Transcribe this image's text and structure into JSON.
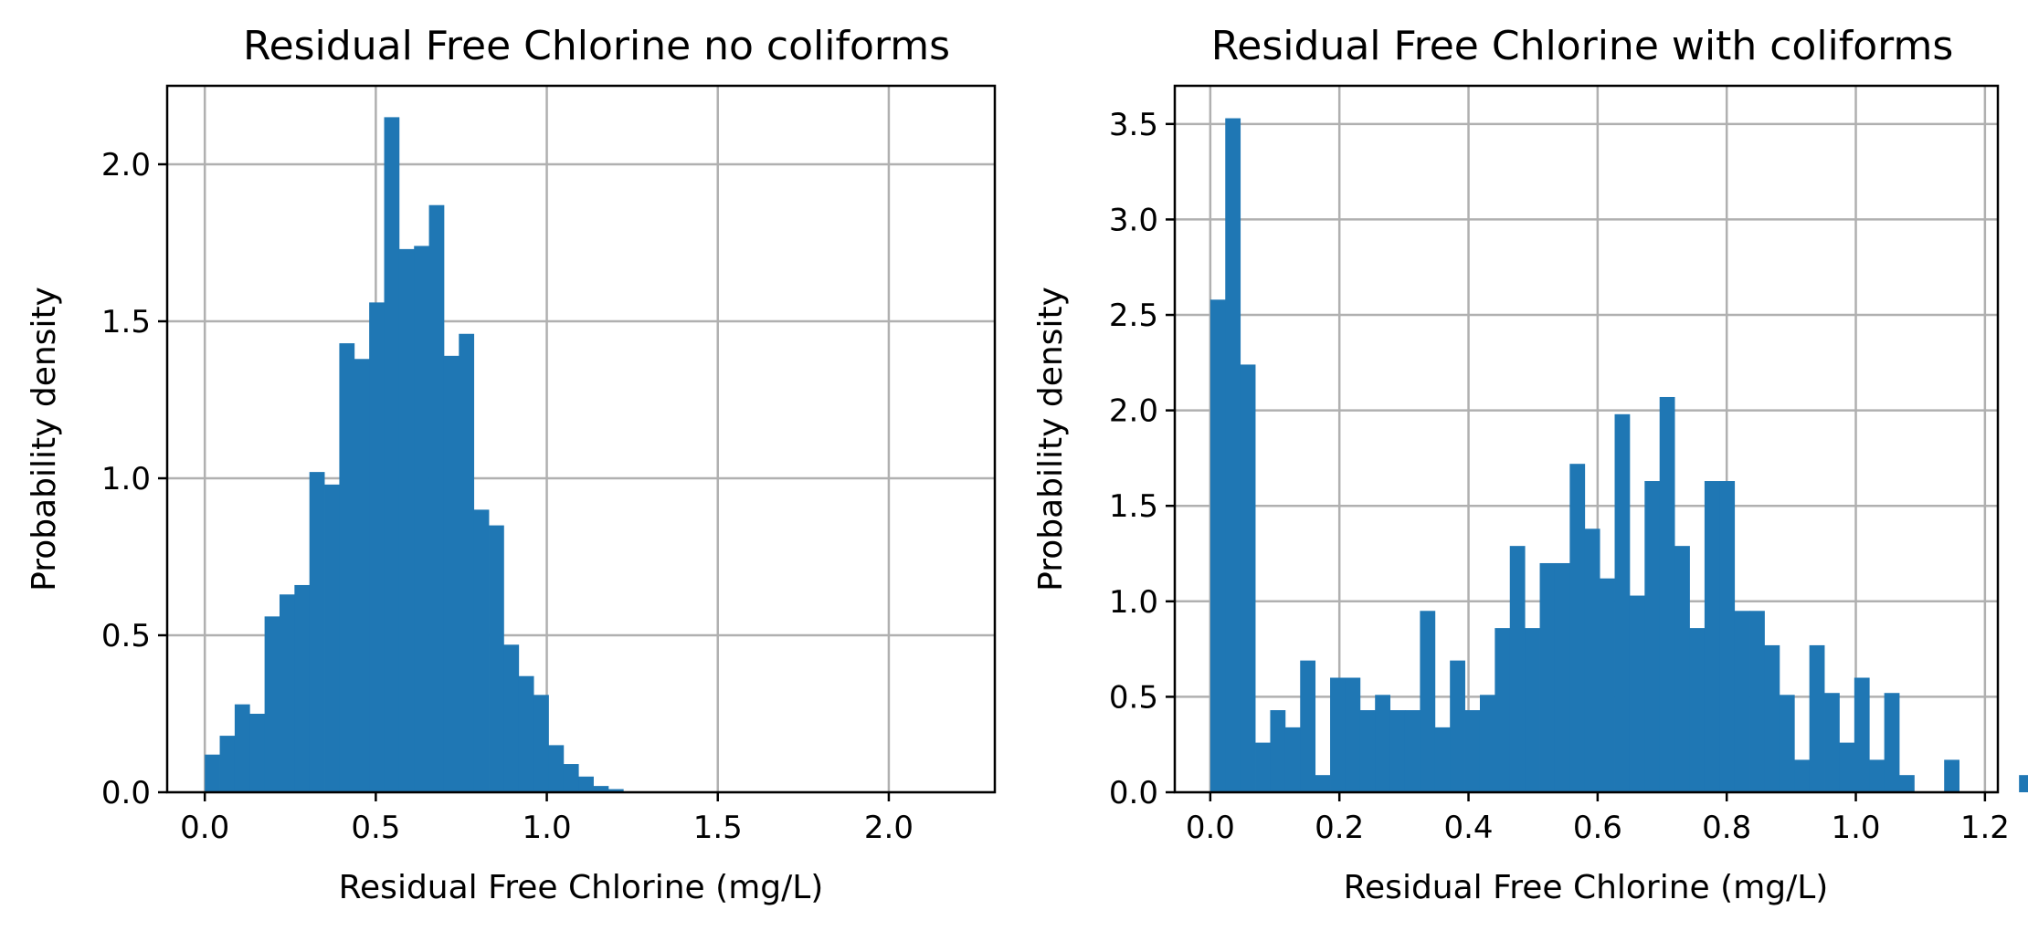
{
  "chart_data": [
    {
      "type": "bar",
      "title": "Residual Free Chlorine no coliforms",
      "xlabel": "Residual Free Chlorine (mg/L)",
      "ylabel": "Probability density",
      "xlim": [
        -0.11,
        2.31
      ],
      "ylim": [
        0,
        2.25
      ],
      "xticks": [
        0.0,
        0.5,
        1.0,
        1.5,
        2.0
      ],
      "xtick_labels": [
        "0.0",
        "0.5",
        "1.0",
        "1.5",
        "2.0"
      ],
      "yticks": [
        0.0,
        0.5,
        1.0,
        1.5,
        2.0
      ],
      "ytick_labels": [
        "0.0",
        "0.5",
        "1.0",
        "1.5",
        "2.0"
      ],
      "grid": true,
      "color": "#1f77b4",
      "bin_start": 0.0,
      "bin_width": 0.0437,
      "values": [
        0.12,
        0.18,
        0.28,
        0.25,
        0.56,
        0.63,
        0.66,
        1.02,
        0.98,
        1.43,
        1.38,
        1.56,
        2.15,
        1.73,
        1.74,
        1.87,
        1.39,
        1.46,
        0.9,
        0.85,
        0.47,
        0.37,
        0.31,
        0.15,
        0.09,
        0.05,
        0.02,
        0.01
      ]
    },
    {
      "type": "bar",
      "title": "Residual Free Chlorine with coliforms",
      "xlabel": "Residual Free Chlorine (mg/L)",
      "ylabel": "Probability density",
      "xlim": [
        -0.055,
        1.22
      ],
      "ylim": [
        0,
        3.7
      ],
      "xticks": [
        0.0,
        0.2,
        0.4,
        0.6,
        0.8,
        1.0,
        1.2
      ],
      "xtick_labels": [
        "0.0",
        "0.2",
        "0.4",
        "0.6",
        "0.8",
        "1.0",
        "1.2"
      ],
      "yticks": [
        0.0,
        0.5,
        1.0,
        1.5,
        2.0,
        2.5,
        3.0,
        3.5
      ],
      "ytick_labels": [
        "0.0",
        "0.5",
        "1.0",
        "1.5",
        "2.0",
        "2.5",
        "3.0",
        "3.5"
      ],
      "grid": true,
      "color": "#1f77b4",
      "bin_start": 0.0,
      "bin_width": 0.0232,
      "values": [
        2.58,
        3.53,
        2.24,
        0.26,
        0.43,
        0.34,
        0.69,
        0.09,
        0.6,
        0.6,
        0.43,
        0.51,
        0.43,
        0.43,
        0.95,
        0.34,
        0.69,
        0.43,
        0.51,
        0.86,
        1.29,
        0.86,
        1.2,
        1.2,
        1.72,
        1.38,
        1.12,
        1.98,
        1.03,
        1.63,
        2.07,
        1.29,
        0.86,
        1.63,
        1.63,
        0.95,
        0.95,
        0.77,
        0.51,
        0.17,
        0.77,
        0.52,
        0.26,
        0.6,
        0.17,
        0.52,
        0.09,
        0.0,
        0.0,
        0.17,
        0.0,
        0.0,
        0.0,
        0.0,
        0.09
      ]
    }
  ]
}
